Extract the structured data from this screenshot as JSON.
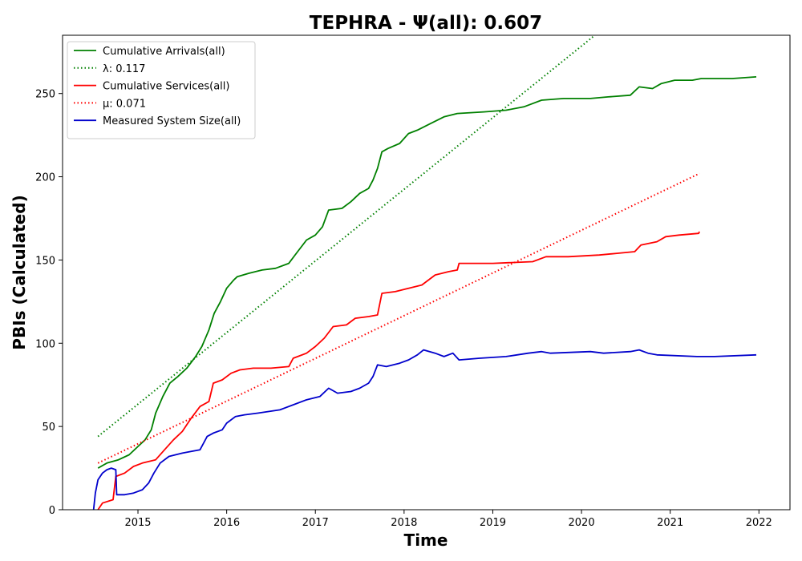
{
  "chart_data": {
    "type": "line",
    "title": "TEPHRA -  Ψ(all): 0.607",
    "xlabel": "Time",
    "ylabel": "PBIs (Calculated)",
    "xlim": [
      2014.15,
      2022.35
    ],
    "ylim": [
      0,
      285
    ],
    "x_ticks": [
      "2015",
      "2016",
      "2017",
      "2018",
      "2019",
      "2020",
      "2021",
      "2022"
    ],
    "y_ticks": [
      "0",
      "50",
      "100",
      "150",
      "200",
      "250"
    ],
    "grid": false,
    "legend_position": "top-left",
    "series": [
      {
        "name": "Cumulative Arrivals(all)",
        "style": "solid",
        "color": "#008000",
        "points": [
          [
            2014.55,
            25
          ],
          [
            2014.65,
            28
          ],
          [
            2014.78,
            30
          ],
          [
            2014.9,
            33
          ],
          [
            2015.0,
            38
          ],
          [
            2015.08,
            42
          ],
          [
            2015.15,
            48
          ],
          [
            2015.2,
            58
          ],
          [
            2015.28,
            68
          ],
          [
            2015.36,
            76
          ],
          [
            2015.45,
            80
          ],
          [
            2015.55,
            85
          ],
          [
            2015.65,
            92
          ],
          [
            2015.72,
            98
          ],
          [
            2015.8,
            108
          ],
          [
            2015.86,
            118
          ],
          [
            2015.93,
            125
          ],
          [
            2016.0,
            133
          ],
          [
            2016.08,
            138
          ],
          [
            2016.12,
            140
          ],
          [
            2016.25,
            142
          ],
          [
            2016.4,
            144
          ],
          [
            2016.55,
            145
          ],
          [
            2016.7,
            148
          ],
          [
            2016.8,
            155
          ],
          [
            2016.9,
            162
          ],
          [
            2017.0,
            165
          ],
          [
            2017.08,
            170
          ],
          [
            2017.15,
            180
          ],
          [
            2017.3,
            181
          ],
          [
            2017.4,
            185
          ],
          [
            2017.5,
            190
          ],
          [
            2017.6,
            193
          ],
          [
            2017.65,
            198
          ],
          [
            2017.7,
            205
          ],
          [
            2017.75,
            215
          ],
          [
            2017.82,
            217
          ],
          [
            2017.95,
            220
          ],
          [
            2018.05,
            226
          ],
          [
            2018.15,
            228
          ],
          [
            2018.3,
            232
          ],
          [
            2018.45,
            236
          ],
          [
            2018.6,
            238
          ],
          [
            2018.9,
            239
          ],
          [
            2019.15,
            240
          ],
          [
            2019.35,
            242
          ],
          [
            2019.55,
            246
          ],
          [
            2019.8,
            247
          ],
          [
            2020.1,
            247
          ],
          [
            2020.3,
            248
          ],
          [
            2020.55,
            249
          ],
          [
            2020.65,
            254
          ],
          [
            2020.8,
            253
          ],
          [
            2020.9,
            256
          ],
          [
            2021.05,
            258
          ],
          [
            2021.25,
            258
          ],
          [
            2021.35,
            259
          ],
          [
            2021.7,
            259
          ],
          [
            2021.97,
            260
          ]
        ]
      },
      {
        "name": "λ: 0.117",
        "style": "dotted",
        "color": "#008000",
        "points": [
          [
            2014.55,
            44
          ],
          [
            2020.15,
            285
          ]
        ]
      },
      {
        "name": "Cumulative Services(all)",
        "style": "solid",
        "color": "#ff0000",
        "points": [
          [
            2014.55,
            0
          ],
          [
            2014.6,
            4
          ],
          [
            2014.72,
            6
          ],
          [
            2014.75,
            20
          ],
          [
            2014.85,
            22
          ],
          [
            2014.95,
            26
          ],
          [
            2015.05,
            28
          ],
          [
            2015.2,
            30
          ],
          [
            2015.3,
            36
          ],
          [
            2015.4,
            42
          ],
          [
            2015.5,
            47
          ],
          [
            2015.6,
            55
          ],
          [
            2015.7,
            62
          ],
          [
            2015.8,
            65
          ],
          [
            2015.85,
            76
          ],
          [
            2015.95,
            78
          ],
          [
            2016.05,
            82
          ],
          [
            2016.15,
            84
          ],
          [
            2016.3,
            85
          ],
          [
            2016.5,
            85
          ],
          [
            2016.7,
            86
          ],
          [
            2016.75,
            91
          ],
          [
            2016.9,
            94
          ],
          [
            2017.0,
            98
          ],
          [
            2017.1,
            103
          ],
          [
            2017.2,
            110
          ],
          [
            2017.35,
            111
          ],
          [
            2017.45,
            115
          ],
          [
            2017.6,
            116
          ],
          [
            2017.7,
            117
          ],
          [
            2017.75,
            130
          ],
          [
            2017.9,
            131
          ],
          [
            2018.05,
            133
          ],
          [
            2018.2,
            135
          ],
          [
            2018.35,
            141
          ],
          [
            2018.5,
            143
          ],
          [
            2018.6,
            144
          ],
          [
            2018.62,
            148
          ],
          [
            2018.8,
            148
          ],
          [
            2019.0,
            148
          ],
          [
            2019.45,
            149
          ],
          [
            2019.6,
            152
          ],
          [
            2019.85,
            152
          ],
          [
            2020.2,
            153
          ],
          [
            2020.4,
            154
          ],
          [
            2020.6,
            155
          ],
          [
            2020.67,
            159
          ],
          [
            2020.85,
            161
          ],
          [
            2020.95,
            164
          ],
          [
            2021.1,
            165
          ],
          [
            2021.32,
            166
          ],
          [
            2021.33,
            167
          ]
        ]
      },
      {
        "name": "μ: 0.071",
        "style": "dotted",
        "color": "#ff0000",
        "points": [
          [
            2014.55,
            28
          ],
          [
            2021.33,
            202
          ]
        ]
      },
      {
        "name": "Measured System Size(all)",
        "style": "solid",
        "color": "#0000cc",
        "points": [
          [
            2014.5,
            0
          ],
          [
            2014.52,
            10
          ],
          [
            2014.55,
            18
          ],
          [
            2014.6,
            22
          ],
          [
            2014.65,
            24
          ],
          [
            2014.7,
            25
          ],
          [
            2014.75,
            24
          ],
          [
            2014.76,
            9
          ],
          [
            2014.85,
            9
          ],
          [
            2014.95,
            10
          ],
          [
            2015.05,
            12
          ],
          [
            2015.12,
            16
          ],
          [
            2015.18,
            22
          ],
          [
            2015.25,
            28
          ],
          [
            2015.35,
            32
          ],
          [
            2015.5,
            34
          ],
          [
            2015.6,
            35
          ],
          [
            2015.7,
            36
          ],
          [
            2015.78,
            44
          ],
          [
            2015.85,
            46
          ],
          [
            2015.95,
            48
          ],
          [
            2016.0,
            52
          ],
          [
            2016.1,
            56
          ],
          [
            2016.2,
            57
          ],
          [
            2016.35,
            58
          ],
          [
            2016.6,
            60
          ],
          [
            2016.75,
            63
          ],
          [
            2016.9,
            66
          ],
          [
            2017.05,
            68
          ],
          [
            2017.15,
            73
          ],
          [
            2017.25,
            70
          ],
          [
            2017.4,
            71
          ],
          [
            2017.5,
            73
          ],
          [
            2017.6,
            76
          ],
          [
            2017.65,
            80
          ],
          [
            2017.7,
            87
          ],
          [
            2017.8,
            86
          ],
          [
            2017.95,
            88
          ],
          [
            2018.05,
            90
          ],
          [
            2018.15,
            93
          ],
          [
            2018.22,
            96
          ],
          [
            2018.35,
            94
          ],
          [
            2018.45,
            92
          ],
          [
            2018.55,
            94
          ],
          [
            2018.62,
            90
          ],
          [
            2018.85,
            91
          ],
          [
            2019.15,
            92
          ],
          [
            2019.4,
            94
          ],
          [
            2019.55,
            95
          ],
          [
            2019.65,
            94
          ],
          [
            2020.1,
            95
          ],
          [
            2020.25,
            94
          ],
          [
            2020.55,
            95
          ],
          [
            2020.65,
            96
          ],
          [
            2020.75,
            94
          ],
          [
            2020.85,
            93
          ],
          [
            2021.3,
            92
          ],
          [
            2021.5,
            92
          ],
          [
            2021.97,
            93
          ]
        ]
      }
    ]
  }
}
